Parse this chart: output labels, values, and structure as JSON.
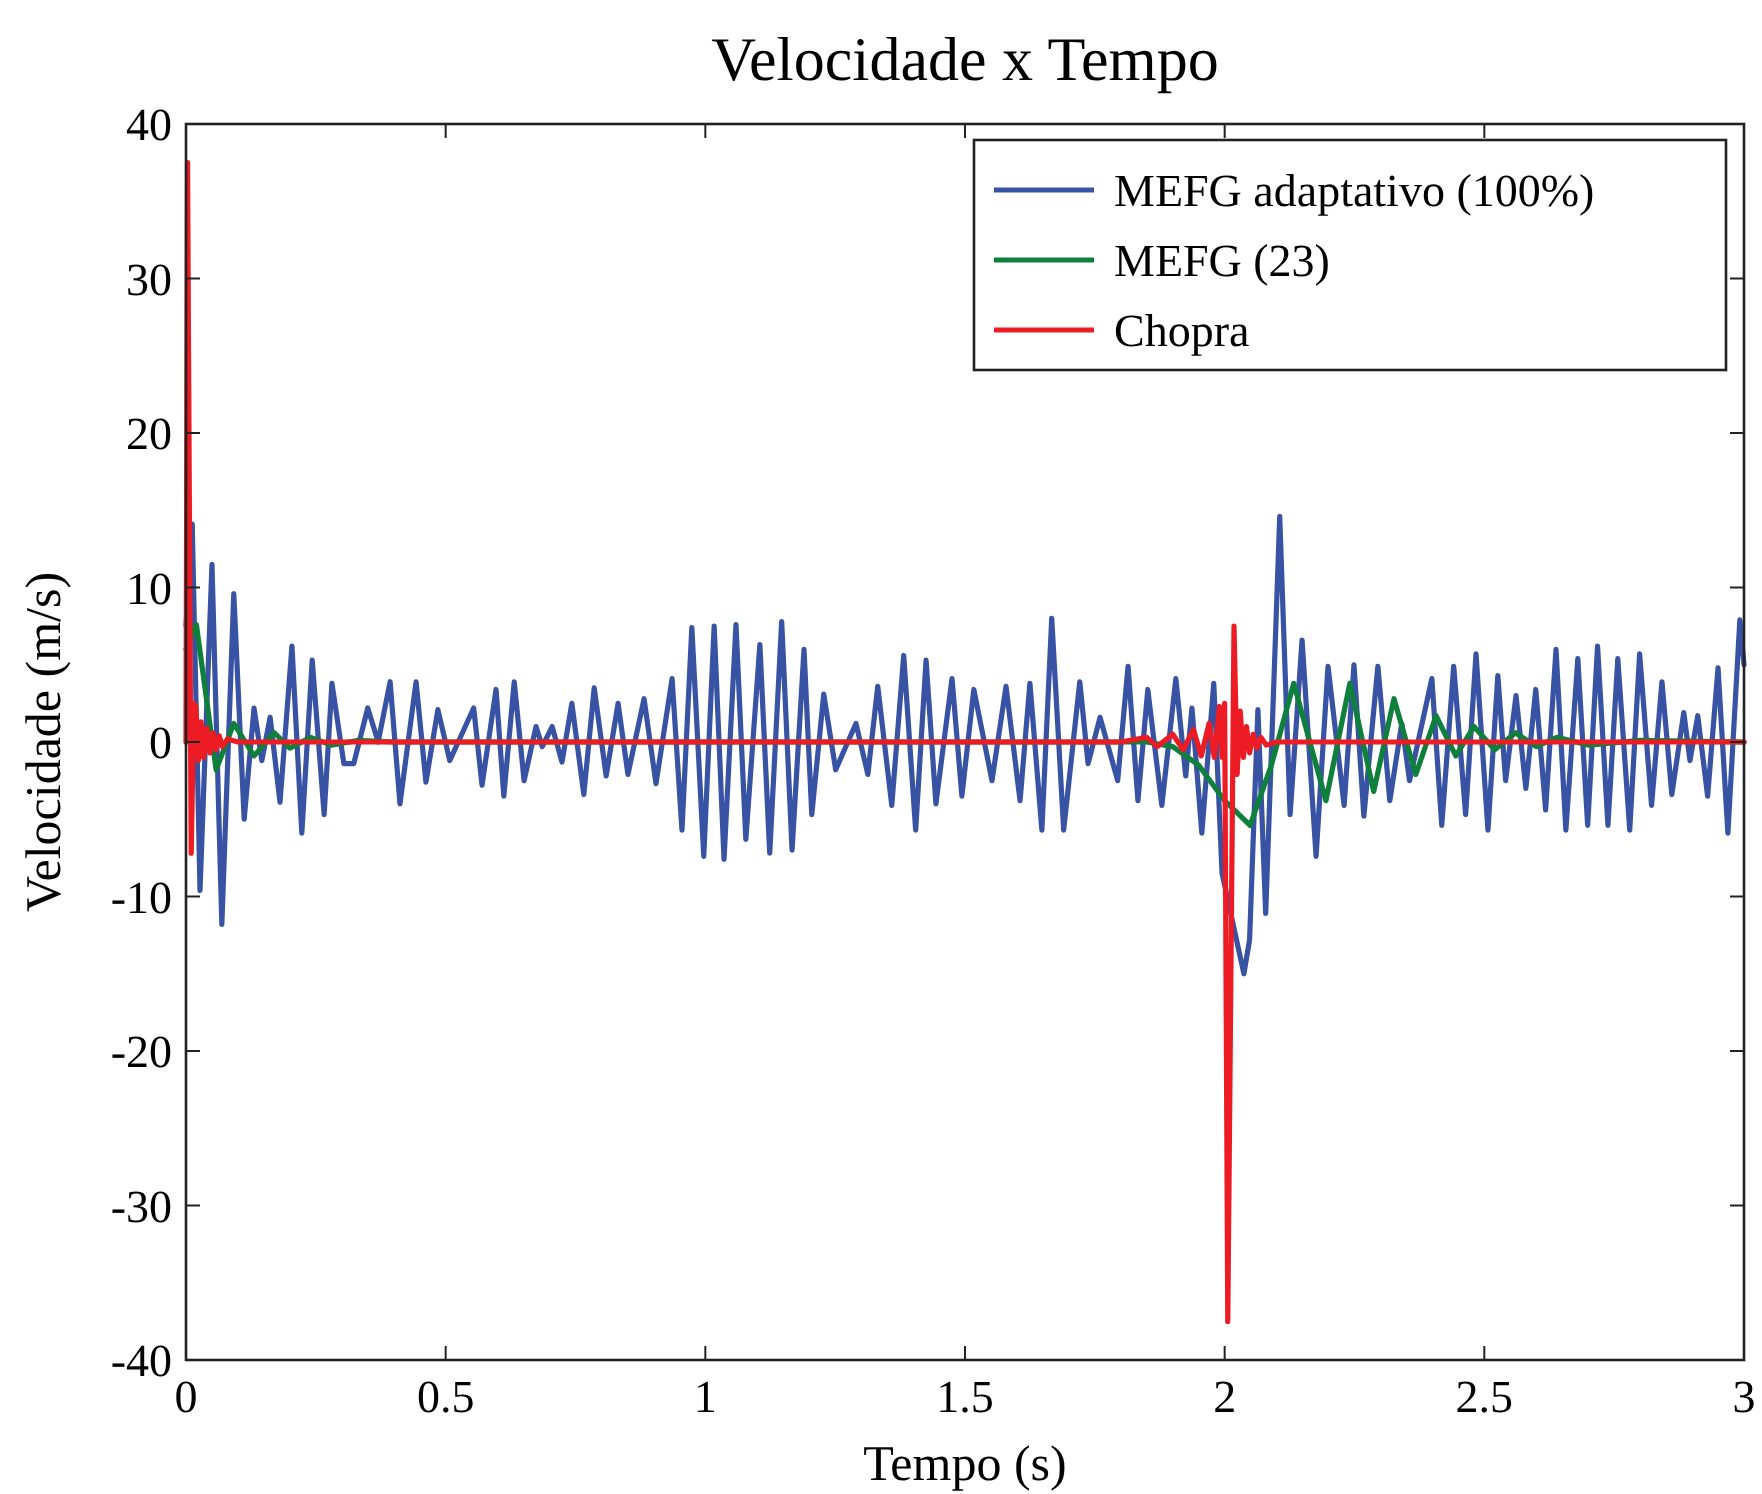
{
  "chart_data": {
    "type": "line",
    "title": "Velocidade x Tempo",
    "xlabel": "Tempo (s)",
    "ylabel": "Velocidade (m/s)",
    "xlim": [
      0,
      3
    ],
    "xticks": [
      0,
      0.5,
      1,
      1.5,
      2,
      2.5,
      3
    ],
    "ylim": [
      -40,
      40
    ],
    "yticks": [
      -40,
      -30,
      -20,
      -10,
      0,
      10,
      20,
      30,
      40
    ],
    "grid": false,
    "legend": "top right",
    "line_style": "solid",
    "marker": "none",
    "series": [
      {
        "name": "MEFG adaptativo (100%)",
        "color": "#3953a4",
        "x": [
          0,
          0.012,
          0.027,
          0.05,
          0.069,
          0.092,
          0.112,
          0.131,
          0.146,
          0.162,
          0.181,
          0.204,
          0.223,
          0.243,
          0.266,
          0.281,
          0.304,
          0.323,
          0.35,
          0.37,
          0.393,
          0.412,
          0.443,
          0.462,
          0.485,
          0.508,
          0.554,
          0.57,
          0.597,
          0.612,
          0.632,
          0.651,
          0.674,
          0.686,
          0.705,
          0.724,
          0.743,
          0.766,
          0.786,
          0.809,
          0.832,
          0.851,
          0.882,
          0.905,
          0.936,
          0.955,
          0.974,
          0.997,
          1.017,
          1.036,
          1.059,
          1.078,
          1.105,
          1.124,
          1.147,
          1.167,
          1.19,
          1.205,
          1.228,
          1.251,
          1.29,
          1.313,
          1.332,
          1.359,
          1.382,
          1.405,
          1.425,
          1.444,
          1.475,
          1.494,
          1.517,
          1.552,
          1.579,
          1.606,
          1.625,
          1.648,
          1.667,
          1.69,
          1.721,
          1.737,
          1.76,
          1.794,
          1.814,
          1.833,
          1.852,
          1.879,
          1.906,
          1.925,
          1.937,
          1.956,
          1.979,
          1.995,
          2.037,
          2.048,
          2.064,
          2.079,
          2.106,
          2.126,
          2.149,
          2.176,
          2.199,
          2.23,
          2.249,
          2.268,
          2.295,
          2.318,
          2.341,
          2.356,
          2.399,
          2.418,
          2.441,
          2.464,
          2.484,
          2.507,
          2.526,
          2.541,
          2.561,
          2.58,
          2.599,
          2.618,
          2.638,
          2.657,
          2.68,
          2.699,
          2.718,
          2.738,
          2.757,
          2.78,
          2.799,
          2.822,
          2.842,
          2.861,
          2.884,
          2.896,
          2.911,
          2.93,
          2.95,
          2.969,
          2.992,
          3
        ],
        "values": [
          7.5,
          14.1,
          -9.6,
          11.5,
          -11.8,
          9.6,
          -5.0,
          2.2,
          -1.2,
          1.6,
          -3.9,
          6.2,
          -5.9,
          5.3,
          -4.7,
          3.8,
          -1.4,
          -1.4,
          2.2,
          0,
          3.9,
          -4.0,
          3.9,
          -2.6,
          2.1,
          -1.2,
          2.2,
          -2.8,
          3.4,
          -3.5,
          3.9,
          -2.5,
          1.0,
          -0.3,
          1.0,
          -1.3,
          2.5,
          -3.4,
          3.5,
          -2.2,
          2.5,
          -2.1,
          2.8,
          -2.7,
          4.1,
          -5.7,
          7.4,
          -7.4,
          7.5,
          -7.6,
          7.6,
          -6.3,
          6.3,
          -7.2,
          7.8,
          -7.0,
          6.0,
          -4.7,
          3.1,
          -1.8,
          1.2,
          -2.1,
          3.6,
          -4.1,
          5.6,
          -5.7,
          5.3,
          -4.0,
          4.1,
          -3.5,
          3.4,
          -2.5,
          3.6,
          -3.8,
          3.8,
          -5.7,
          8.0,
          -5.7,
          3.9,
          -1.4,
          1.6,
          -2.5,
          4.9,
          -3.8,
          3.4,
          -4.1,
          4.1,
          -2.2,
          2.2,
          -5.9,
          3.8,
          -8.5,
          -15.0,
          -12.8,
          2.1,
          -11.1,
          14.6,
          -4.7,
          6.6,
          -7.4,
          4.9,
          -4.1,
          5.0,
          -4.8,
          4.9,
          -3.8,
          1.2,
          -2.5,
          4.1,
          -5.4,
          4.9,
          -4.7,
          5.7,
          -5.7,
          4.3,
          -2.5,
          3.0,
          -3.0,
          3.4,
          -4.4,
          6.0,
          -5.7,
          5.4,
          -5.4,
          6.2,
          -5.4,
          5.4,
          -5.7,
          5.7,
          -4.1,
          3.9,
          -3.4,
          1.9,
          -1.2,
          1.7,
          -3.5,
          4.8,
          -5.9,
          7.9,
          5.0
        ]
      },
      {
        "name": "MEFG (23)",
        "color": "#0f7f3c",
        "x": [
          0,
          0.02,
          0.058,
          0.092,
          0.131,
          0.17,
          0.2,
          0.24,
          0.28,
          0.33,
          0.4,
          1.85,
          1.9,
          1.95,
          2.0,
          2.049,
          2.09,
          2.133,
          2.195,
          2.241,
          2.287,
          2.326,
          2.368,
          2.407,
          2.445,
          2.48,
          2.52,
          2.56,
          2.6,
          2.64,
          2.7,
          2.8,
          3
        ],
        "values": [
          6,
          7.6,
          -1.8,
          1.2,
          -0.9,
          0.6,
          -0.4,
          0.3,
          -0.2,
          0.1,
          0,
          0,
          -0.3,
          -1.5,
          -3.8,
          -5.4,
          -1.5,
          3.8,
          -3.8,
          3.8,
          -3.2,
          2.8,
          -2.1,
          1.7,
          -0.9,
          1.0,
          -0.5,
          0.6,
          -0.3,
          0.3,
          -0.2,
          0.1,
          0
        ]
      },
      {
        "name": "Chopra",
        "color": "#ed1c24",
        "x": [
          0,
          0.003,
          0.01,
          0.015,
          0.019,
          0.024,
          0.029,
          0.034,
          0.04,
          0.046,
          0.052,
          0.058,
          0.064,
          0.07,
          0.08,
          0.1,
          1.8,
          1.85,
          1.87,
          1.9,
          1.92,
          1.94,
          1.955,
          1.97,
          1.98,
          1.99,
          1.995,
          2.0,
          2.006,
          2.018,
          2.024,
          2.03,
          2.036,
          2.042,
          2.048,
          2.055,
          2.062,
          2.07,
          2.08,
          2.1,
          3
        ],
        "values": [
          0,
          37.5,
          -7.2,
          2.5,
          2.3,
          -1.2,
          1.3,
          -1.0,
          0.9,
          -0.7,
          0.6,
          -0.5,
          0.4,
          -0.3,
          0.2,
          0,
          0,
          0.3,
          -0.3,
          0.5,
          -0.5,
          0.8,
          -0.9,
          1.2,
          -1.0,
          2.3,
          -1.0,
          2.5,
          -37.5,
          7.5,
          -2.1,
          2.0,
          -1.0,
          1.0,
          -0.7,
          0.5,
          -0.4,
          0.3,
          -0.2,
          0,
          0
        ]
      }
    ]
  }
}
